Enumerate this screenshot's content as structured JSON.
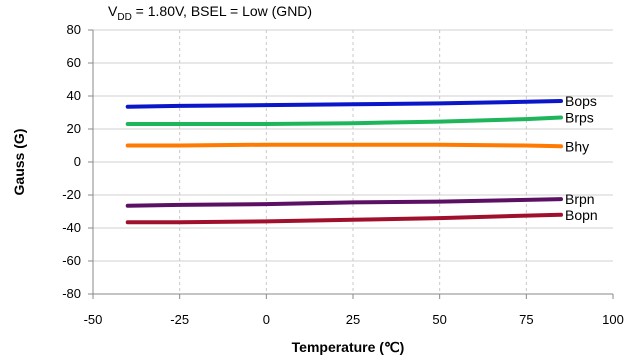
{
  "chart_data": {
    "type": "line",
    "subtitle_main": "V",
    "subtitle_sub": "DD",
    "subtitle_rest": " = 1.80V, BSEL = Low (GND)",
    "xlabel": "Temperature (℃)",
    "ylabel": "Gauss (G)",
    "xlim": [
      -50,
      100
    ],
    "ylim": [
      -80,
      80
    ],
    "xticks": [
      -50,
      -25,
      0,
      25,
      50,
      75,
      100
    ],
    "yticks": [
      80,
      60,
      40,
      20,
      0,
      -20,
      -40,
      -60,
      -80
    ],
    "grid": true,
    "series": [
      {
        "name": "Bops",
        "color": "#0a16c8",
        "x": [
          -40,
          -25,
          0,
          25,
          50,
          75,
          85
        ],
        "y": [
          33.5,
          34,
          34.5,
          35,
          35.5,
          36.5,
          37
        ]
      },
      {
        "name": "Brps",
        "color": "#1fb55a",
        "x": [
          -40,
          -25,
          0,
          25,
          50,
          75,
          85
        ],
        "y": [
          23,
          23,
          23,
          23.5,
          24.5,
          26,
          27
        ]
      },
      {
        "name": "Bhy",
        "color": "#ff7a00",
        "x": [
          -40,
          -25,
          0,
          25,
          50,
          75,
          85
        ],
        "y": [
          10,
          10,
          10.5,
          10.5,
          10.5,
          10,
          9.5
        ]
      },
      {
        "name": "Brpn",
        "color": "#5c1064",
        "x": [
          -40,
          -25,
          0,
          25,
          50,
          75,
          85
        ],
        "y": [
          -26.5,
          -26,
          -25.5,
          -24.5,
          -24,
          -23,
          -22.5
        ]
      },
      {
        "name": "Bopn",
        "color": "#a0102c",
        "x": [
          -40,
          -25,
          0,
          25,
          50,
          75,
          85
        ],
        "y": [
          -36.5,
          -36.5,
          -36,
          -35,
          -34,
          -32.5,
          -32
        ]
      }
    ]
  }
}
